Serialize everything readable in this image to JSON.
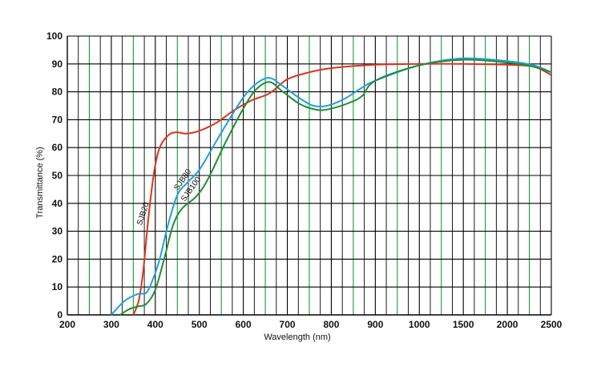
{
  "chart_data": {
    "type": "line",
    "xlabel": "Wavelength (nm)",
    "ylabel": "Transmittance (%)",
    "x_ticks": [
      "200",
      "300",
      "400",
      "500",
      "600",
      "700",
      "800",
      "900",
      "1000",
      "1500",
      "2000",
      "2500"
    ],
    "y_ticks": [
      "0",
      "10",
      "20",
      "30",
      "40",
      "50",
      "60",
      "70",
      "80",
      "90",
      "100"
    ],
    "ylim": [
      0,
      100
    ],
    "grid": true,
    "colors": {
      "major_grid": "#000000",
      "minor_grid": "#1a9a3a"
    },
    "series": [
      {
        "name": "SJB20",
        "color": "#e0311e",
        "label": "SJB20",
        "points": [
          [
            350,
            0
          ],
          [
            362,
            5
          ],
          [
            372,
            15
          ],
          [
            380,
            28
          ],
          [
            388,
            40
          ],
          [
            398,
            52
          ],
          [
            410,
            60
          ],
          [
            430,
            64.5
          ],
          [
            450,
            65.5
          ],
          [
            470,
            65
          ],
          [
            500,
            66
          ],
          [
            540,
            69
          ],
          [
            580,
            73.5
          ],
          [
            620,
            77
          ],
          [
            660,
            79.5
          ],
          [
            700,
            84.5
          ],
          [
            750,
            87
          ],
          [
            800,
            88.5
          ],
          [
            900,
            89.7
          ],
          [
            1000,
            90
          ],
          [
            1500,
            90
          ],
          [
            2000,
            89.7
          ],
          [
            2300,
            89
          ],
          [
            2500,
            86
          ]
        ]
      },
      {
        "name": "SJB80",
        "color": "#1fa0e0",
        "label": "SJB80",
        "points": [
          [
            300,
            0
          ],
          [
            330,
            5
          ],
          [
            360,
            7.5
          ],
          [
            380,
            8
          ],
          [
            395,
            13
          ],
          [
            410,
            20
          ],
          [
            430,
            33
          ],
          [
            450,
            43
          ],
          [
            470,
            47
          ],
          [
            500,
            52
          ],
          [
            530,
            60
          ],
          [
            560,
            68
          ],
          [
            600,
            78
          ],
          [
            630,
            83
          ],
          [
            660,
            85
          ],
          [
            690,
            82
          ],
          [
            730,
            77.5
          ],
          [
            760,
            75
          ],
          [
            790,
            75
          ],
          [
            830,
            77.5
          ],
          [
            870,
            81.5
          ],
          [
            900,
            84
          ],
          [
            1000,
            89.5
          ],
          [
            1500,
            92
          ],
          [
            2000,
            91
          ],
          [
            2300,
            89.5
          ],
          [
            2500,
            87
          ]
        ]
      },
      {
        "name": "SJB100",
        "color": "#1e8f34",
        "label": "SJB100",
        "points": [
          [
            320,
            0
          ],
          [
            340,
            2
          ],
          [
            360,
            3
          ],
          [
            380,
            4
          ],
          [
            400,
            9
          ],
          [
            420,
            20
          ],
          [
            440,
            32
          ],
          [
            460,
            38
          ],
          [
            490,
            42
          ],
          [
            510,
            46
          ],
          [
            530,
            52
          ],
          [
            560,
            62
          ],
          [
            600,
            74
          ],
          [
            630,
            81
          ],
          [
            660,
            83.5
          ],
          [
            690,
            80
          ],
          [
            730,
            75.5
          ],
          [
            770,
            73.5
          ],
          [
            800,
            74
          ],
          [
            840,
            76
          ],
          [
            870,
            78.5
          ],
          [
            900,
            84
          ],
          [
            1000,
            89.5
          ],
          [
            1500,
            91.5
          ],
          [
            2000,
            90.5
          ],
          [
            2300,
            89
          ],
          [
            2500,
            87
          ]
        ]
      }
    ]
  }
}
